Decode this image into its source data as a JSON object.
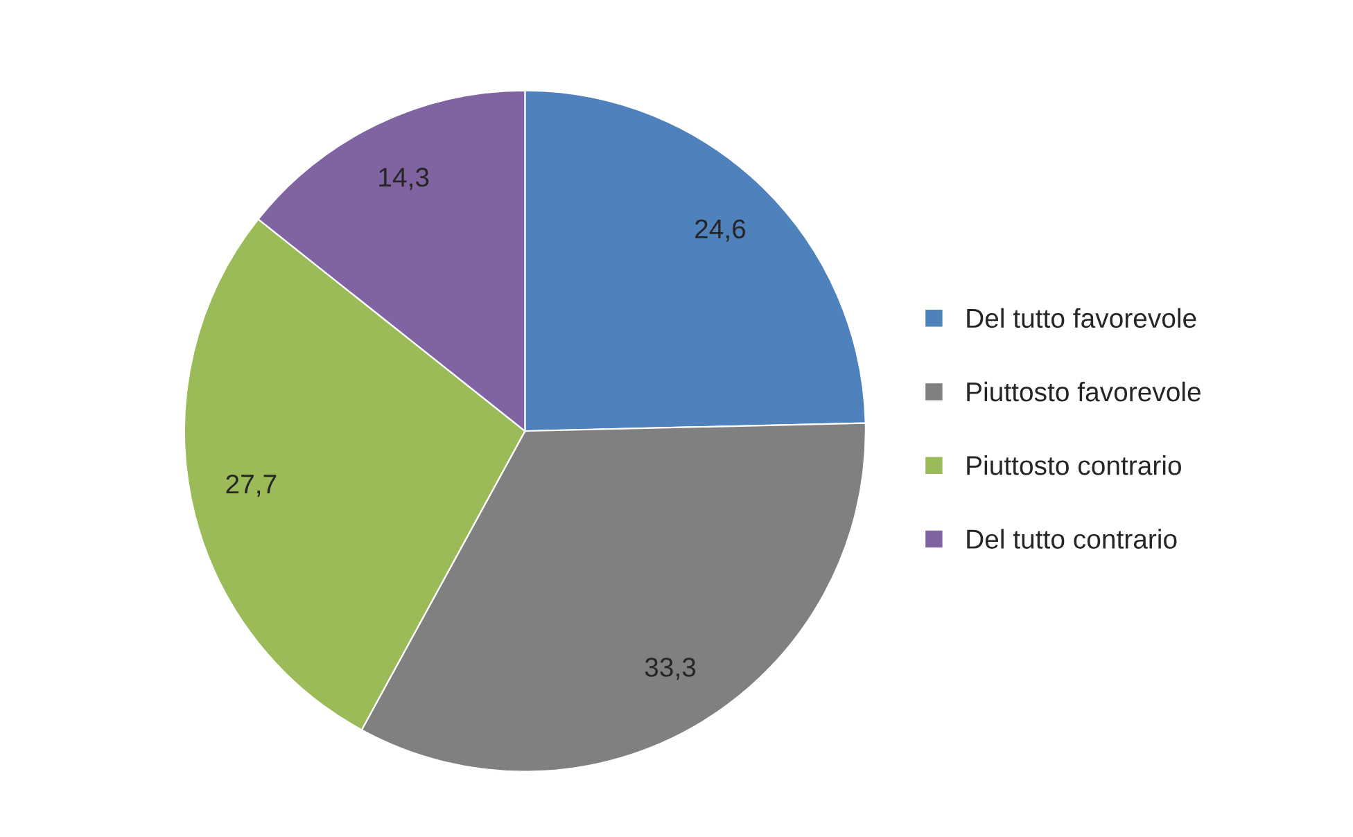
{
  "chart_data": {
    "type": "pie",
    "categories": [
      "Del tutto favorevole",
      "Piuttosto favorevole",
      "Piuttosto contrario",
      "Del tutto contrario"
    ],
    "values": [
      24.6,
      33.3,
      27.7,
      14.3
    ],
    "value_labels": [
      "24,6",
      "33,3",
      "27,7",
      "14,3"
    ],
    "colors": [
      "#4f81bd",
      "#808080",
      "#9bbb59",
      "#8064a2"
    ],
    "legend": "right"
  }
}
